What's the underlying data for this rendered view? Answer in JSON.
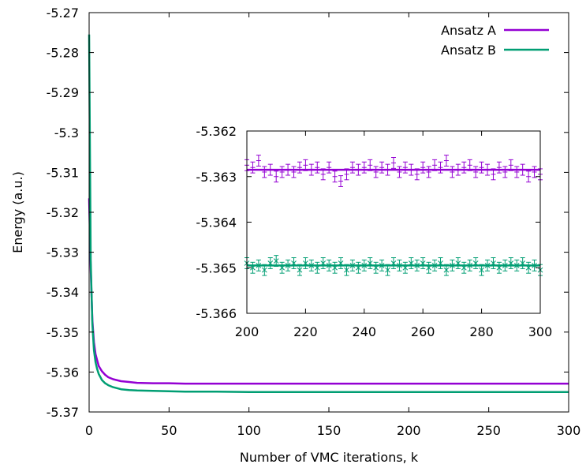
{
  "chart_data": [
    {
      "type": "line",
      "title": "",
      "xlabel": "Number of VMC iterations, k",
      "ylabel": "Energy (a.u.)",
      "xlim": [
        0,
        300
      ],
      "ylim": [
        -5.37,
        -5.27
      ],
      "xticks": [
        "0",
        "50",
        "100",
        "150",
        "200",
        "250",
        "300"
      ],
      "yticks": [
        "-5.27",
        "-5.28",
        "-5.29",
        "-5.3",
        "-5.31",
        "-5.32",
        "-5.33",
        "-5.34",
        "-5.35",
        "-5.36",
        "-5.37"
      ],
      "grid": false,
      "legend": "top-right",
      "series": [
        {
          "name": "Ansatz A",
          "color": "#9400d3",
          "x": [
            0,
            1,
            2,
            3,
            4,
            5,
            6,
            8,
            10,
            12,
            15,
            20,
            25,
            30,
            40,
            50,
            60,
            80,
            100,
            120,
            150,
            200,
            250,
            300
          ],
          "y": [
            -5.3165,
            -5.334,
            -5.347,
            -5.3525,
            -5.3555,
            -5.357,
            -5.3585,
            -5.3598,
            -5.3607,
            -5.3613,
            -5.3618,
            -5.3623,
            -5.3625,
            -5.3627,
            -5.3628,
            -5.3628,
            -5.3629,
            -5.3629,
            -5.3629,
            -5.3629,
            -5.3629,
            -5.3629,
            -5.3629,
            -5.3629
          ]
        },
        {
          "name": "Ansatz B",
          "color": "#009e73",
          "x": [
            0,
            1,
            2,
            3,
            4,
            5,
            6,
            8,
            10,
            12,
            15,
            20,
            25,
            30,
            40,
            50,
            60,
            80,
            100,
            120,
            150,
            200,
            250,
            300
          ],
          "y": [
            -5.2755,
            -5.332,
            -5.348,
            -5.3545,
            -5.3575,
            -5.3592,
            -5.3605,
            -5.362,
            -5.3628,
            -5.3633,
            -5.3638,
            -5.3643,
            -5.3645,
            -5.3646,
            -5.3647,
            -5.3648,
            -5.3649,
            -5.3649,
            -5.365,
            -5.365,
            -5.365,
            -5.365,
            -5.365,
            -5.365
          ]
        }
      ]
    },
    {
      "type": "scatter",
      "title": "",
      "xlabel": "",
      "ylabel": "",
      "xlim": [
        200,
        300
      ],
      "ylim": [
        -5.366,
        -5.362
      ],
      "xticks": [
        "200",
        "220",
        "240",
        "260",
        "280",
        "300"
      ],
      "yticks": [
        "-5.362",
        "-5.363",
        "-5.364",
        "-5.365",
        "-5.366"
      ],
      "grid": false,
      "error_bars": true,
      "series": [
        {
          "color": "#9400d3",
          "mean": -5.36285,
          "x": [
            200,
            202,
            204,
            206,
            208,
            210,
            212,
            214,
            216,
            218,
            220,
            222,
            224,
            226,
            228,
            230,
            232,
            234,
            236,
            238,
            240,
            242,
            244,
            246,
            248,
            250,
            252,
            254,
            256,
            258,
            260,
            262,
            264,
            266,
            268,
            270,
            272,
            274,
            276,
            278,
            280,
            282,
            284,
            286,
            288,
            290,
            292,
            294,
            296,
            298,
            300
          ],
          "y": [
            -5.36275,
            -5.3628,
            -5.36265,
            -5.3629,
            -5.36285,
            -5.363,
            -5.3629,
            -5.36285,
            -5.3629,
            -5.3628,
            -5.36275,
            -5.36285,
            -5.3628,
            -5.36295,
            -5.3628,
            -5.363,
            -5.3631,
            -5.36295,
            -5.3628,
            -5.36285,
            -5.3628,
            -5.36275,
            -5.3629,
            -5.3628,
            -5.36285,
            -5.3627,
            -5.3629,
            -5.3628,
            -5.36285,
            -5.36295,
            -5.3628,
            -5.3629,
            -5.36275,
            -5.3628,
            -5.36265,
            -5.3629,
            -5.36285,
            -5.3628,
            -5.36275,
            -5.3629,
            -5.3628,
            -5.36285,
            -5.36295,
            -5.3628,
            -5.3629,
            -5.36275,
            -5.3629,
            -5.36285,
            -5.363,
            -5.3629,
            -5.36295
          ],
          "err": 0.00012
        },
        {
          "color": "#009e73",
          "mean": -5.36495,
          "x": [
            200,
            202,
            204,
            206,
            208,
            210,
            212,
            214,
            216,
            218,
            220,
            222,
            224,
            226,
            228,
            230,
            232,
            234,
            236,
            238,
            240,
            242,
            244,
            246,
            248,
            250,
            252,
            254,
            256,
            258,
            260,
            262,
            264,
            266,
            268,
            270,
            272,
            274,
            276,
            278,
            280,
            282,
            284,
            286,
            288,
            290,
            292,
            294,
            296,
            298,
            300
          ],
          "y": [
            -5.3649,
            -5.365,
            -5.36495,
            -5.36505,
            -5.3649,
            -5.36485,
            -5.365,
            -5.36495,
            -5.3649,
            -5.36505,
            -5.3649,
            -5.36495,
            -5.365,
            -5.3649,
            -5.36495,
            -5.365,
            -5.3649,
            -5.36505,
            -5.36495,
            -5.365,
            -5.36495,
            -5.3649,
            -5.365,
            -5.36495,
            -5.36505,
            -5.3649,
            -5.36495,
            -5.365,
            -5.3649,
            -5.36495,
            -5.3649,
            -5.365,
            -5.36495,
            -5.3649,
            -5.36505,
            -5.36495,
            -5.3649,
            -5.365,
            -5.36495,
            -5.3649,
            -5.36505,
            -5.36495,
            -5.3649,
            -5.365,
            -5.36495,
            -5.3649,
            -5.36495,
            -5.3649,
            -5.365,
            -5.36495,
            -5.36505
          ],
          "err": 0.00012
        }
      ]
    }
  ]
}
